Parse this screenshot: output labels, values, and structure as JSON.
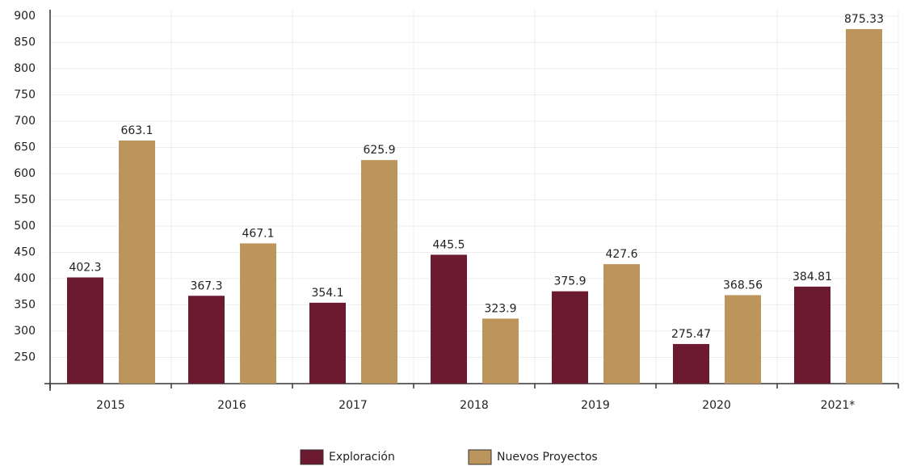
{
  "chart_data": {
    "type": "bar",
    "categories": [
      "2015",
      "2016",
      "2017",
      "2018",
      "2019",
      "2020",
      "2021*"
    ],
    "series": [
      {
        "name": "Exploración",
        "color": "#6b1a2f",
        "values": [
          402.3,
          367.3,
          354.1,
          445.5,
          375.9,
          275.47,
          384.81
        ]
      },
      {
        "name": "Nuevos Proyectos",
        "color": "#bc955c",
        "values": [
          663.1,
          467.1,
          625.9,
          323.9,
          427.6,
          368.56,
          875.33
        ]
      }
    ],
    "ylim": [
      200,
      900
    ],
    "yticks": [
      250,
      300,
      350,
      400,
      450,
      500,
      550,
      600,
      650,
      700,
      750,
      800,
      850,
      900
    ],
    "grid": true
  }
}
